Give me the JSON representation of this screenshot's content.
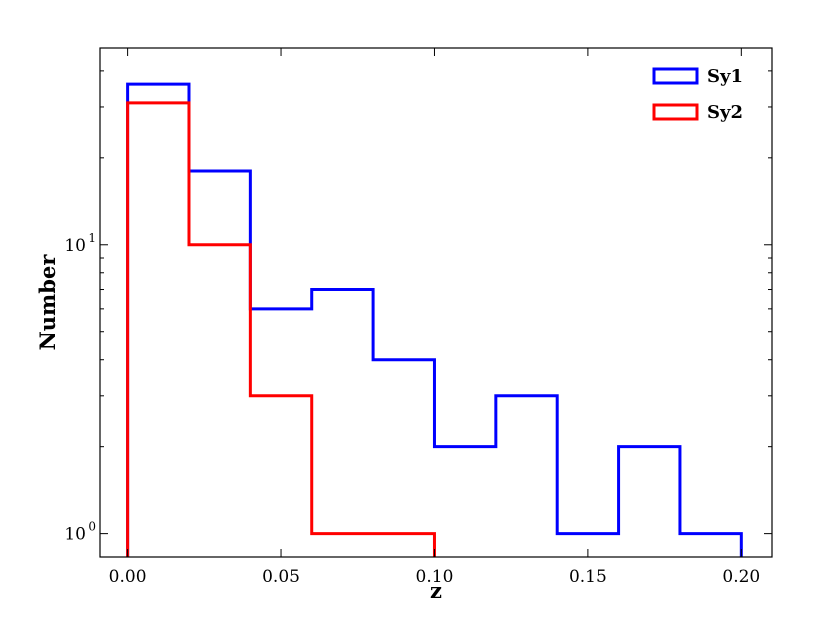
{
  "chart_data": {
    "type": "histogram",
    "xlabel": "z",
    "ylabel": "Number",
    "xlim": [
      -0.009,
      0.21
    ],
    "ylim": [
      0.83,
      48
    ],
    "yscale": "log",
    "grid": false,
    "legend_position": "top-right",
    "x_ticks": [
      {
        "value": 0.0,
        "label": "0.00"
      },
      {
        "value": 0.05,
        "label": "0.05"
      },
      {
        "value": 0.1,
        "label": "0.10"
      },
      {
        "value": 0.15,
        "label": "0.15"
      },
      {
        "value": 0.2,
        "label": "0.20"
      }
    ],
    "y_ticks": [
      {
        "value": 1,
        "base": "10",
        "exp": "0"
      },
      {
        "value": 10,
        "base": "10",
        "exp": "1"
      }
    ],
    "bin_edges": [
      0.0,
      0.02,
      0.04,
      0.06,
      0.08,
      0.1,
      0.12,
      0.14,
      0.16,
      0.18,
      0.2
    ],
    "series": [
      {
        "name": "Sy1",
        "color": "#0000ff",
        "values": [
          36,
          18,
          6,
          7,
          4,
          2,
          3,
          1,
          2,
          1
        ]
      },
      {
        "name": "Sy2",
        "color": "#ff0000",
        "values": [
          31,
          10,
          3,
          1,
          1,
          0,
          0,
          0,
          0,
          0
        ]
      }
    ]
  }
}
